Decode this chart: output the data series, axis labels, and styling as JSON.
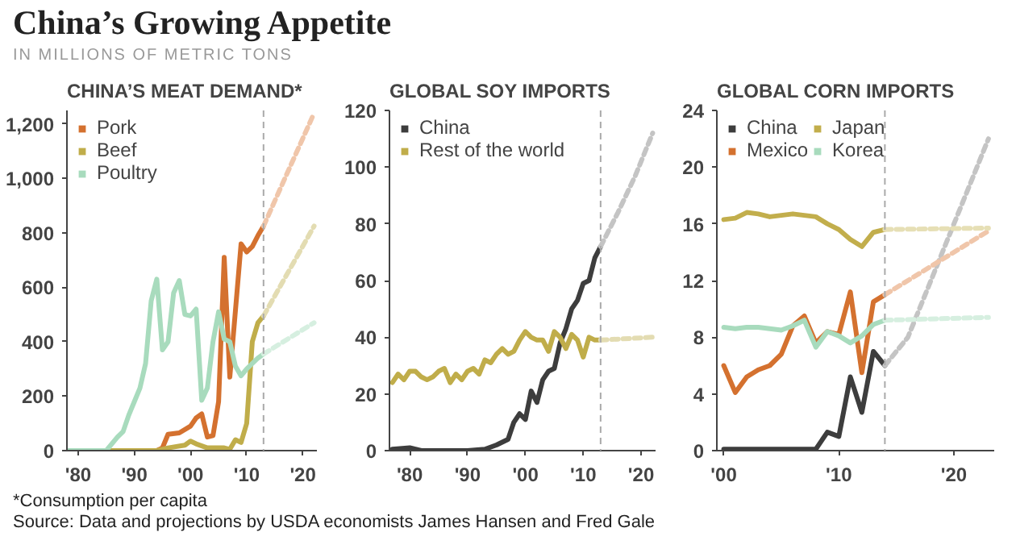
{
  "chart_data": [
    {
      "type": "other",
      "title": "China’s Growing Appetite",
      "subtitle": "IN MILLIONS OF METRIC TONS",
      "annotations": [
        "*Consumption per capita",
        "Source: Data and projections by USDA economists James Hansen and Fred Gale"
      ]
    },
    {
      "type": "line",
      "title": "CHINA’S MEAT DEMAND*",
      "legend": "top left",
      "xlim": [
        1978,
        2022.5
      ],
      "ylim": [
        0,
        1250
      ],
      "xticks": [
        {
          "value": 1980,
          "label": "'80"
        },
        {
          "value": 1990,
          "label": "'90"
        },
        {
          "value": 2000,
          "label": "'00"
        },
        {
          "value": 2010,
          "label": "'10"
        },
        {
          "value": 2020,
          "label": "'20"
        }
      ],
      "yticks": [
        0,
        200,
        400,
        600,
        800,
        {
          "value": 1000,
          "label": "1,000"
        },
        {
          "value": 1200,
          "label": "1,200"
        }
      ],
      "ref_lines": [
        {
          "axis": "x",
          "value": 2013,
          "color": "#aaaaaa",
          "line_style": "dashed"
        }
      ],
      "series": [
        {
          "name": "Pork",
          "color": "#d4712f",
          "x": [
            1978,
            1994,
            1995,
            1996,
            1998,
            2000,
            2001,
            2002,
            2003,
            2004,
            2005,
            2006,
            2007,
            2009,
            2010,
            2011,
            2012,
            2013
          ],
          "values": [
            0,
            0,
            10,
            60,
            65,
            90,
            120,
            135,
            50,
            55,
            180,
            710,
            270,
            760,
            730,
            750,
            790,
            825
          ]
        },
        {
          "name": "Beef",
          "color": "#c0ad4a",
          "x": [
            1978,
            1994,
            1996,
            1999,
            2000,
            2001,
            2003,
            2006,
            2007,
            2008,
            2009,
            2010,
            2011,
            2012,
            2013
          ],
          "values": [
            0,
            0,
            10,
            20,
            35,
            25,
            10,
            10,
            5,
            40,
            30,
            100,
            400,
            470,
            495
          ]
        },
        {
          "name": "Poultry",
          "color": "#a8dbbd",
          "x": [
            1978,
            1985,
            1987,
            1988,
            1989,
            1990,
            1991,
            1992,
            1993,
            1994,
            1995,
            1996,
            1997,
            1998,
            1999,
            2000,
            2001,
            2002,
            2003,
            2004,
            2005,
            2006,
            2007,
            2008,
            2009,
            2010,
            2011,
            2012,
            2013
          ],
          "values": [
            0,
            0,
            50,
            70,
            130,
            180,
            230,
            320,
            550,
            630,
            370,
            400,
            580,
            625,
            500,
            495,
            520,
            185,
            230,
            400,
            510,
            410,
            400,
            310,
            275,
            300,
            320,
            340,
            355
          ]
        },
        {
          "color": "#f0c6aa",
          "line_style": "dashed",
          "x": [
            2013,
            2022
          ],
          "values": [
            825,
            1240
          ]
        },
        {
          "color": "#e3dcb2",
          "line_style": "dashed",
          "x": [
            2013,
            2022
          ],
          "values": [
            495,
            825
          ]
        },
        {
          "color": "#d6efe0",
          "line_style": "dashed",
          "x": [
            2013,
            2022
          ],
          "values": [
            355,
            470
          ]
        }
      ]
    },
    {
      "type": "line",
      "title": "GLOBAL SOY IMPORTS",
      "legend": "top left",
      "xlim": [
        1976.5,
        2022.5
      ],
      "ylim": [
        0,
        120
      ],
      "xticks": [
        {
          "value": 1980,
          "label": "'80"
        },
        {
          "value": 1990,
          "label": "'90"
        },
        {
          "value": 2000,
          "label": "'00"
        },
        {
          "value": 2010,
          "label": "'10"
        },
        {
          "value": 2020,
          "label": "'20"
        }
      ],
      "yticks": [
        0,
        20,
        40,
        60,
        80,
        100,
        120
      ],
      "ref_lines": [
        {
          "axis": "x",
          "value": 2013,
          "color": "#aaaaaa",
          "line_style": "dashed"
        }
      ],
      "series": [
        {
          "name": "China",
          "color": "#3d3d3d",
          "x": [
            1977,
            1980,
            1982,
            1990,
            1993,
            1995,
            1997,
            1998,
            1999,
            2000,
            2001,
            2002,
            2003,
            2004,
            2005,
            2006,
            2007,
            2008,
            2009,
            2010,
            2011,
            2012,
            2013
          ],
          "values": [
            0.5,
            1,
            0,
            0,
            0.5,
            2,
            4,
            10,
            13,
            11,
            21,
            17,
            25,
            28,
            29,
            38,
            43,
            50,
            53,
            59,
            60,
            68,
            72
          ]
        },
        {
          "name": "Rest of the world",
          "color": "#c0ad4a",
          "x": [
            1977,
            1978,
            1979,
            1980,
            1981,
            1982,
            1983,
            1984,
            1985,
            1986,
            1987,
            1988,
            1989,
            1990,
            1991,
            1992,
            1993,
            1994,
            1995,
            1996,
            1997,
            1998,
            1999,
            2000,
            2001,
            2002,
            2003,
            2004,
            2005,
            2006,
            2007,
            2008,
            2009,
            2010,
            2011,
            2012,
            2013
          ],
          "values": [
            24,
            27,
            25,
            28,
            28,
            26,
            25,
            26,
            28,
            29,
            24,
            27,
            25,
            28,
            29,
            27,
            32,
            31,
            34,
            36,
            34,
            35,
            39,
            42,
            40,
            39,
            39,
            35,
            42,
            40,
            36,
            41,
            39,
            33,
            40,
            39,
            39
          ]
        },
        {
          "color": "#c4c4c4",
          "line_style": "dashed",
          "x": [
            2013,
            2016,
            2019,
            2022
          ],
          "values": [
            72,
            84,
            97,
            112
          ]
        },
        {
          "color": "#e3dcb2",
          "line_style": "dashed",
          "x": [
            2013,
            2022
          ],
          "values": [
            39,
            40
          ]
        }
      ]
    },
    {
      "type": "line",
      "title": "GLOBAL CORN IMPORTS",
      "legend": "top left",
      "xlim": [
        1999.4,
        2023.5
      ],
      "ylim": [
        0,
        24
      ],
      "xticks": [
        {
          "value": 2000,
          "label": "'00"
        },
        {
          "value": 2010,
          "label": "'10"
        },
        {
          "value": 2020,
          "label": "'20"
        }
      ],
      "yticks": [
        0,
        4,
        8,
        12,
        16,
        20,
        24
      ],
      "ref_lines": [
        {
          "axis": "x",
          "value": 2014,
          "color": "#aaaaaa",
          "line_style": "dashed"
        }
      ],
      "series": [
        {
          "name": "China",
          "color": "#3d3d3d",
          "x": [
            2000,
            2008,
            2009,
            2010,
            2011,
            2012,
            2013,
            2014
          ],
          "values": [
            0.1,
            0.1,
            1.3,
            1,
            5.2,
            2.7,
            7,
            6
          ]
        },
        {
          "name": "Mexico",
          "color": "#d4712f",
          "x": [
            2000,
            2001,
            2002,
            2003,
            2004,
            2005,
            2006,
            2007,
            2008,
            2009,
            2010,
            2011,
            2012,
            2013,
            2014
          ],
          "values": [
            6,
            4.1,
            5.2,
            5.7,
            6,
            6.8,
            8.8,
            9.5,
            7.6,
            8.4,
            8.2,
            11.2,
            5.5,
            10.5,
            11
          ]
        },
        {
          "name": "Japan",
          "color": "#c2ae4c",
          "x": [
            2000,
            2001,
            2002,
            2003,
            2004,
            2005,
            2006,
            2007,
            2008,
            2009,
            2010,
            2011,
            2012,
            2013,
            2014
          ],
          "values": [
            16.3,
            16.4,
            16.8,
            16.7,
            16.5,
            16.6,
            16.7,
            16.6,
            16.5,
            16,
            15.6,
            14.9,
            14.4,
            15.4,
            15.6
          ]
        },
        {
          "name": "Korea",
          "color": "#a8dbbd",
          "x": [
            2000,
            2001,
            2002,
            2003,
            2004,
            2005,
            2006,
            2007,
            2008,
            2009,
            2010,
            2011,
            2012,
            2013,
            2014
          ],
          "values": [
            8.7,
            8.6,
            8.7,
            8.7,
            8.6,
            8.5,
            8.8,
            9.2,
            7.3,
            8.4,
            8.1,
            7.6,
            8.1,
            8.9,
            9.2
          ]
        },
        {
          "color": "#c4c4c4",
          "line_style": "dashed",
          "x": [
            2014,
            2016,
            2023
          ],
          "values": [
            6,
            8,
            22
          ]
        },
        {
          "color": "#f0c6aa",
          "line_style": "dashed",
          "x": [
            2014,
            2023
          ],
          "values": [
            11,
            15.5
          ]
        },
        {
          "color": "#e6dfb5",
          "line_style": "dashed",
          "x": [
            2014,
            2023
          ],
          "values": [
            15.6,
            15.7
          ]
        },
        {
          "color": "#d6efe0",
          "line_style": "dashed",
          "x": [
            2014,
            2023
          ],
          "values": [
            9.2,
            9.4
          ]
        }
      ]
    }
  ]
}
